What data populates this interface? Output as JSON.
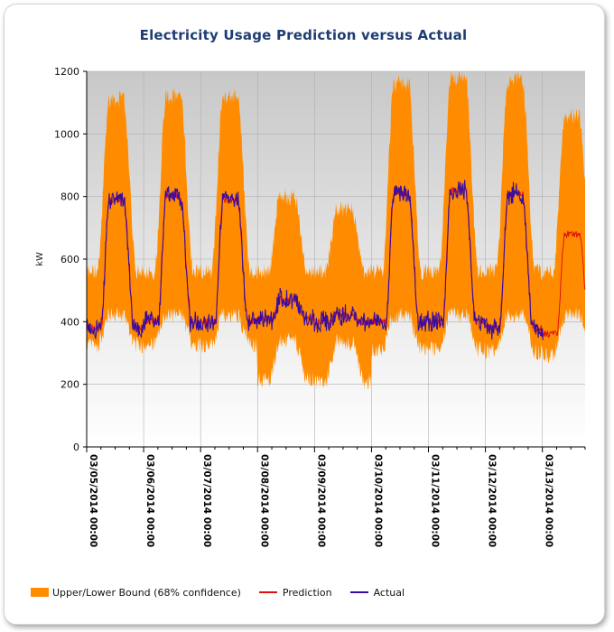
{
  "chart_data": {
    "type": "line",
    "title": "Electricity Usage Prediction versus Actual",
    "ylabel": "kW",
    "xlabel": "",
    "ylim": [
      0,
      1200
    ],
    "yticks": [
      0,
      200,
      400,
      600,
      800,
      1000,
      1200
    ],
    "xlim_days": [
      0,
      8.75
    ],
    "x_tick_labels": [
      "03/05/2014 00:00",
      "03/06/2014 00:00",
      "03/07/2014 00:00",
      "03/08/2014 00:00",
      "03/09/2014 00:00",
      "03/10/2014 00:00",
      "03/11/2014 00:00",
      "03/12/2014 00:00",
      "03/13/2014 00:00"
    ],
    "grid": true,
    "legend_position": "bottom",
    "colors": {
      "band": "#ff8c00",
      "prediction": "#e01010",
      "actual": "#3a0ca3",
      "plot_bg_top": "#c8c8c8",
      "plot_bg_bottom": "#ffffff"
    },
    "series": [
      {
        "name": "Upper/Lower Bound (68% confidence)",
        "kind": "band"
      },
      {
        "name": "Prediction",
        "kind": "line"
      },
      {
        "name": "Actual",
        "kind": "line"
      }
    ],
    "days": [
      {
        "date": "03/05/2014",
        "base": 380,
        "peak": 790,
        "upper_peak": 1110,
        "lower_min": 230,
        "actual": true
      },
      {
        "date": "03/06/2014",
        "base": 400,
        "peak": 800,
        "upper_peak": 1120,
        "lower_min": 240,
        "actual": true
      },
      {
        "date": "03/07/2014",
        "base": 400,
        "peak": 790,
        "upper_peak": 1120,
        "lower_min": 230,
        "actual": true
      },
      {
        "date": "03/08/2014",
        "base": 410,
        "peak": 470,
        "upper_peak": 800,
        "lower_min": 90,
        "actual": true
      },
      {
        "date": "03/09/2014",
        "base": 400,
        "peak": 420,
        "upper_peak": 760,
        "lower_min": 80,
        "actual": true
      },
      {
        "date": "03/10/2014",
        "base": 400,
        "peak": 810,
        "upper_peak": 1160,
        "lower_min": 210,
        "actual": true
      },
      {
        "date": "03/11/2014",
        "base": 400,
        "peak": 820,
        "upper_peak": 1180,
        "lower_min": 200,
        "actual": true
      },
      {
        "date": "03/12/2014",
        "base": 380,
        "peak": 810,
        "upper_peak": 1170,
        "lower_min": 190,
        "actual": true
      },
      {
        "date": "03/13/2014",
        "base": 360,
        "peak": 680,
        "upper_peak": 1060,
        "lower_min": 160,
        "actual": false
      }
    ]
  }
}
